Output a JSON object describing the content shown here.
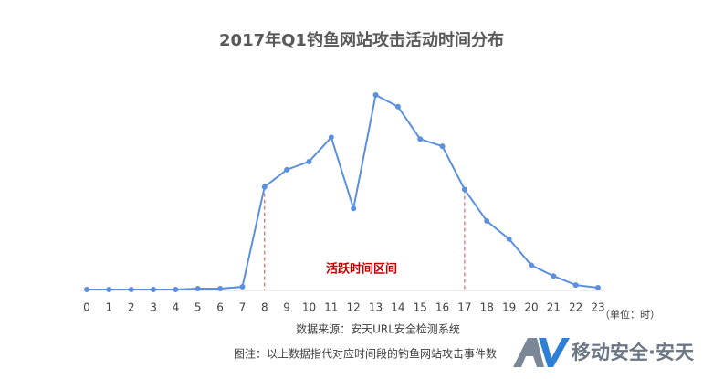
{
  "chart_data": {
    "type": "line",
    "title": "2017年Q1钓鱼网站攻击活动时间分布",
    "categories": [
      "0",
      "1",
      "2",
      "3",
      "4",
      "5",
      "6",
      "7",
      "8",
      "9",
      "10",
      "11",
      "12",
      "13",
      "14",
      "15",
      "16",
      "17",
      "18",
      "19",
      "20",
      "21",
      "22",
      "23"
    ],
    "series": [
      {
        "name": "钓鱼网站攻击事件数",
        "color": "#5b8fdf",
        "values": [
          1,
          1,
          1,
          1,
          1,
          2,
          2,
          4,
          115,
          134,
          143,
          170,
          91,
          217,
          204,
          168,
          160,
          112,
          77,
          57,
          28,
          16,
          6,
          3
        ]
      }
    ],
    "ylim": [
      0,
      220
    ],
    "highlight_range": [
      8,
      17
    ],
    "highlight_color": "#c0504d",
    "annotation": "活跃时间区间",
    "x_unit": "（单位：时）",
    "source": "数据来源：安天URL安全检测系统",
    "note": "图注：以上数据指代对应时间段的钓鱼网站攻击事件数",
    "logo": "移动安全·安天"
  }
}
